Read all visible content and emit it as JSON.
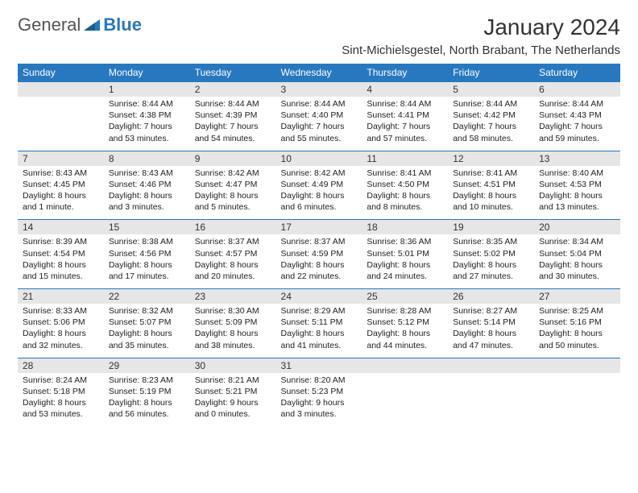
{
  "brand": {
    "name1": "General",
    "name2": "Blue"
  },
  "title": "January 2024",
  "location": "Sint-Michielsgestel, North Brabant, The Netherlands",
  "colors": {
    "accent": "#2878c0",
    "header_bg": "#e6e6e6",
    "text": "#222222"
  },
  "day_headers": [
    "Sunday",
    "Monday",
    "Tuesday",
    "Wednesday",
    "Thursday",
    "Friday",
    "Saturday"
  ],
  "weeks": [
    [
      null,
      {
        "n": "1",
        "sr": "8:44 AM",
        "ss": "4:38 PM",
        "dl": "7 hours and 53 minutes."
      },
      {
        "n": "2",
        "sr": "8:44 AM",
        "ss": "4:39 PM",
        "dl": "7 hours and 54 minutes."
      },
      {
        "n": "3",
        "sr": "8:44 AM",
        "ss": "4:40 PM",
        "dl": "7 hours and 55 minutes."
      },
      {
        "n": "4",
        "sr": "8:44 AM",
        "ss": "4:41 PM",
        "dl": "7 hours and 57 minutes."
      },
      {
        "n": "5",
        "sr": "8:44 AM",
        "ss": "4:42 PM",
        "dl": "7 hours and 58 minutes."
      },
      {
        "n": "6",
        "sr": "8:44 AM",
        "ss": "4:43 PM",
        "dl": "7 hours and 59 minutes."
      }
    ],
    [
      {
        "n": "7",
        "sr": "8:43 AM",
        "ss": "4:45 PM",
        "dl": "8 hours and 1 minute."
      },
      {
        "n": "8",
        "sr": "8:43 AM",
        "ss": "4:46 PM",
        "dl": "8 hours and 3 minutes."
      },
      {
        "n": "9",
        "sr": "8:42 AM",
        "ss": "4:47 PM",
        "dl": "8 hours and 5 minutes."
      },
      {
        "n": "10",
        "sr": "8:42 AM",
        "ss": "4:49 PM",
        "dl": "8 hours and 6 minutes."
      },
      {
        "n": "11",
        "sr": "8:41 AM",
        "ss": "4:50 PM",
        "dl": "8 hours and 8 minutes."
      },
      {
        "n": "12",
        "sr": "8:41 AM",
        "ss": "4:51 PM",
        "dl": "8 hours and 10 minutes."
      },
      {
        "n": "13",
        "sr": "8:40 AM",
        "ss": "4:53 PM",
        "dl": "8 hours and 13 minutes."
      }
    ],
    [
      {
        "n": "14",
        "sr": "8:39 AM",
        "ss": "4:54 PM",
        "dl": "8 hours and 15 minutes."
      },
      {
        "n": "15",
        "sr": "8:38 AM",
        "ss": "4:56 PM",
        "dl": "8 hours and 17 minutes."
      },
      {
        "n": "16",
        "sr": "8:37 AM",
        "ss": "4:57 PM",
        "dl": "8 hours and 20 minutes."
      },
      {
        "n": "17",
        "sr": "8:37 AM",
        "ss": "4:59 PM",
        "dl": "8 hours and 22 minutes."
      },
      {
        "n": "18",
        "sr": "8:36 AM",
        "ss": "5:01 PM",
        "dl": "8 hours and 24 minutes."
      },
      {
        "n": "19",
        "sr": "8:35 AM",
        "ss": "5:02 PM",
        "dl": "8 hours and 27 minutes."
      },
      {
        "n": "20",
        "sr": "8:34 AM",
        "ss": "5:04 PM",
        "dl": "8 hours and 30 minutes."
      }
    ],
    [
      {
        "n": "21",
        "sr": "8:33 AM",
        "ss": "5:06 PM",
        "dl": "8 hours and 32 minutes."
      },
      {
        "n": "22",
        "sr": "8:32 AM",
        "ss": "5:07 PM",
        "dl": "8 hours and 35 minutes."
      },
      {
        "n": "23",
        "sr": "8:30 AM",
        "ss": "5:09 PM",
        "dl": "8 hours and 38 minutes."
      },
      {
        "n": "24",
        "sr": "8:29 AM",
        "ss": "5:11 PM",
        "dl": "8 hours and 41 minutes."
      },
      {
        "n": "25",
        "sr": "8:28 AM",
        "ss": "5:12 PM",
        "dl": "8 hours and 44 minutes."
      },
      {
        "n": "26",
        "sr": "8:27 AM",
        "ss": "5:14 PM",
        "dl": "8 hours and 47 minutes."
      },
      {
        "n": "27",
        "sr": "8:25 AM",
        "ss": "5:16 PM",
        "dl": "8 hours and 50 minutes."
      }
    ],
    [
      {
        "n": "28",
        "sr": "8:24 AM",
        "ss": "5:18 PM",
        "dl": "8 hours and 53 minutes."
      },
      {
        "n": "29",
        "sr": "8:23 AM",
        "ss": "5:19 PM",
        "dl": "8 hours and 56 minutes."
      },
      {
        "n": "30",
        "sr": "8:21 AM",
        "ss": "5:21 PM",
        "dl": "9 hours and 0 minutes."
      },
      {
        "n": "31",
        "sr": "8:20 AM",
        "ss": "5:23 PM",
        "dl": "9 hours and 3 minutes."
      },
      null,
      null,
      null
    ]
  ],
  "labels": {
    "sunrise": "Sunrise:",
    "sunset": "Sunset:",
    "daylight": "Daylight:"
  }
}
